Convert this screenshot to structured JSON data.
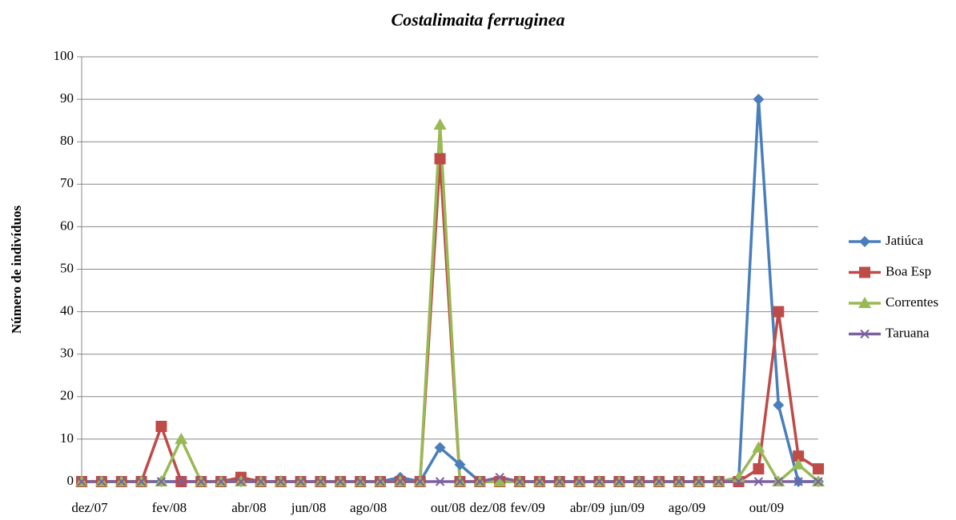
{
  "chart_data": {
    "type": "line",
    "title": "Costalimaita ferruginea",
    "y_label": "Número de indivíduos",
    "categories": [
      "dez/07",
      null,
      null,
      null,
      "fev/08",
      null,
      null,
      null,
      "abr/08",
      null,
      null,
      "jun/08",
      null,
      null,
      "ago/08",
      null,
      null,
      null,
      "out/08",
      null,
      "dez/08",
      null,
      "fev/09",
      null,
      null,
      "abr/09",
      null,
      "jun/09",
      null,
      null,
      "ago/09",
      null,
      null,
      null,
      "out/09",
      null,
      null,
      null
    ],
    "series": [
      {
        "name": "Jatiúca",
        "color": "#4a7ebb",
        "marker": "diamond",
        "values": [
          0,
          0,
          0,
          0,
          0,
          0,
          0,
          0,
          0,
          0,
          0,
          0,
          0,
          0,
          0,
          0,
          1,
          0,
          8,
          4,
          0,
          0,
          0,
          0,
          0,
          0,
          0,
          0,
          0,
          0,
          0,
          0,
          0,
          0,
          90,
          18,
          0,
          0
        ]
      },
      {
        "name": "Boa Esp",
        "color": "#be4b48",
        "marker": "square",
        "values": [
          0,
          0,
          0,
          0,
          13,
          0,
          0,
          0,
          1,
          0,
          0,
          0,
          0,
          0,
          0,
          0,
          0,
          0,
          76,
          0,
          0,
          0,
          0,
          0,
          0,
          0,
          0,
          0,
          0,
          0,
          0,
          0,
          0,
          0,
          3,
          40,
          6,
          3
        ]
      },
      {
        "name": "Correntes",
        "color": "#98b954",
        "marker": "triangle",
        "values": [
          0,
          0,
          0,
          0,
          0,
          10,
          0,
          0,
          0,
          0,
          0,
          0,
          0,
          0,
          0,
          0,
          0,
          0,
          84,
          0,
          0,
          0,
          0,
          0,
          0,
          0,
          0,
          0,
          0,
          0,
          0,
          0,
          0,
          1,
          8,
          0,
          4,
          0
        ]
      },
      {
        "name": "Taruana",
        "color": "#7d60a0",
        "marker": "x",
        "values": [
          0,
          0,
          0,
          0,
          0,
          0,
          0,
          0,
          0,
          0,
          0,
          0,
          0,
          0,
          0,
          0,
          0,
          0,
          0,
          0,
          0,
          1,
          0,
          0,
          0,
          0,
          0,
          0,
          0,
          0,
          0,
          0,
          0,
          0,
          0,
          0,
          0,
          0
        ]
      }
    ],
    "ylim": [
      0,
      100
    ],
    "yticks": [
      0,
      10,
      20,
      30,
      40,
      50,
      60,
      70,
      80,
      90,
      100
    ],
    "grid": true,
    "legend": "right"
  }
}
